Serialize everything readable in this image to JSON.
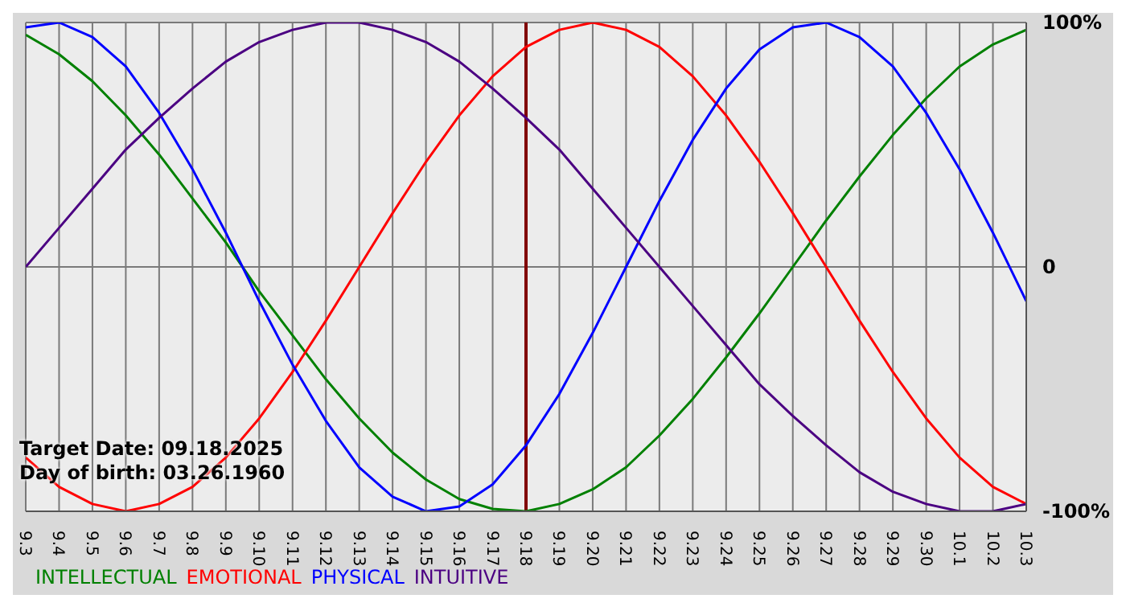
{
  "chart_data": {
    "type": "line",
    "categories": [
      "9.3",
      "9.4",
      "9.5",
      "9.6",
      "9.7",
      "9.8",
      "9.9",
      "9.10",
      "9.11",
      "9.12",
      "9.13",
      "9.14",
      "9.15",
      "9.16",
      "9.17",
      "9.18",
      "9.19",
      "9.20",
      "9.21",
      "9.22",
      "9.23",
      "9.24",
      "9.25",
      "9.26",
      "9.27",
      "9.28",
      "9.29",
      "9.30",
      "10.1",
      "10.2",
      "10.3"
    ],
    "series": [
      {
        "name": "INTELLECTUAL",
        "color": "#008000",
        "values": [
          95,
          87,
          76,
          62,
          46,
          28,
          10,
          -10,
          -28,
          -46,
          -62,
          -76,
          -87,
          -95,
          -99,
          -100,
          -97,
          -91,
          -82,
          -69,
          -54,
          -37,
          -19,
          0,
          19,
          37,
          54,
          69,
          82,
          91,
          97
        ]
      },
      {
        "name": "EMOTIONAL",
        "color": "#ff0000",
        "values": [
          -78,
          -90,
          -97,
          -100,
          -97,
          -90,
          -78,
          -62,
          -43,
          -22,
          0,
          22,
          43,
          62,
          78,
          90,
          97,
          100,
          97,
          90,
          78,
          62,
          43,
          22,
          0,
          -22,
          -43,
          -62,
          -78,
          -90,
          -97
        ]
      },
      {
        "name": "PHYSICAL",
        "color": "#0000ff",
        "values": [
          98,
          100,
          94,
          82,
          63,
          40,
          14,
          -14,
          -40,
          -63,
          -82,
          -94,
          -100,
          -98,
          -89,
          -73,
          -52,
          -27,
          0,
          27,
          52,
          73,
          89,
          98,
          100,
          94,
          82,
          63,
          40,
          14,
          -14
        ]
      },
      {
        "name": "INTUITIVE",
        "color": "#4b0082",
        "values": [
          0,
          16,
          32,
          48,
          61,
          73,
          84,
          92,
          97,
          100,
          100,
          97,
          92,
          84,
          73,
          61,
          48,
          32,
          16,
          0,
          -16,
          -32,
          -48,
          -61,
          -73,
          -84,
          -92,
          -97,
          -100,
          -100,
          -97
        ]
      }
    ],
    "ylim": [
      -100,
      100
    ],
    "yticks": [
      {
        "value": 100,
        "label": "100%"
      },
      0,
      {
        "value": -100,
        "label": "-100%"
      }
    ],
    "grid": true,
    "legend": "bottom",
    "marker": "none",
    "line_style": "solid",
    "ref_lines": [
      {
        "axis": "x",
        "value": "9.18",
        "color": "#800000"
      }
    ],
    "annotations": [
      "Target Date: 09.18.2025",
      "Day of birth: 03.26.1960"
    ]
  }
}
